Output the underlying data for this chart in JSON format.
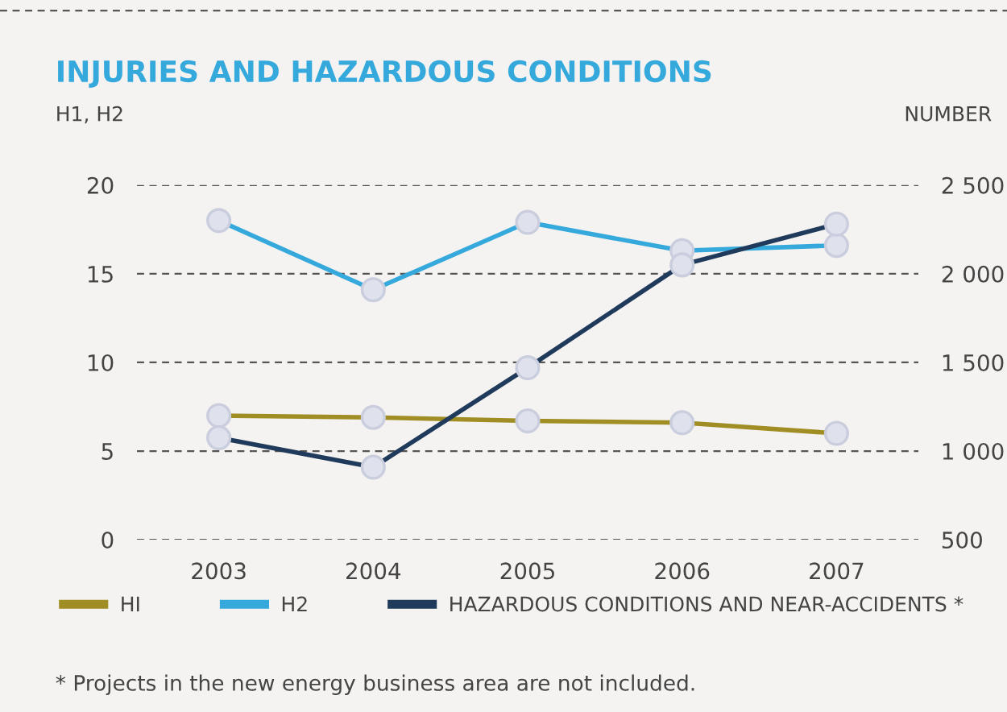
{
  "chart_data": {
    "type": "line",
    "title": "INJURIES AND HAZARDOUS CONDITIONS",
    "ylabel": "H1, H2",
    "y2label": "NUMBER",
    "categories": [
      "2003",
      "2004",
      "2005",
      "2006",
      "2007"
    ],
    "series": [
      {
        "name": "HI",
        "color": "#a08d23",
        "values": [
          7.0,
          6.9,
          6.7,
          6.6,
          6.0
        ]
      },
      {
        "name": "H2",
        "color": "#36a9dc",
        "values": [
          18.0,
          14.1,
          17.9,
          16.3,
          16.6
        ]
      },
      {
        "name": "HAZARDOUS CONDITIONS AND NEAR-ACCIDENTS *",
        "color": "#1f3a5a",
        "axis": "y2",
        "values": [
          1075,
          909,
          1470,
          2050,
          2280
        ]
      }
    ],
    "ylim": [
      0,
      20
    ],
    "yticks": [
      0,
      5,
      10,
      15,
      20
    ],
    "y2lim": [
      500,
      2500
    ],
    "y2ticks": [
      {
        "value": 500,
        "label": "500"
      },
      {
        "value": 1000,
        "label": "1 000"
      },
      {
        "value": 1500,
        "label": "1 500"
      },
      {
        "value": 2000,
        "label": "2 000"
      },
      {
        "value": 2500,
        "label": "2 500"
      }
    ],
    "grid": "y",
    "legend": "bottom",
    "marker": "circle",
    "annotations": [
      "* Projects in the new energy business area are not included."
    ]
  }
}
